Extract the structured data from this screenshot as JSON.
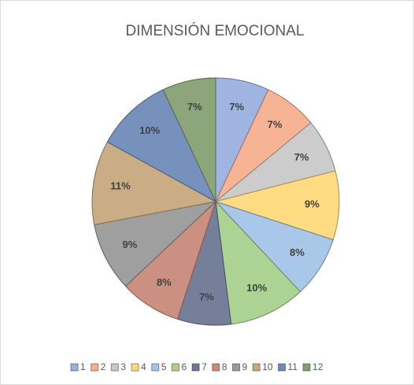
{
  "chart_data": {
    "type": "pie",
    "title": "DIMENSIÓN  EMOCIONAL",
    "categories": [
      "1",
      "2",
      "3",
      "4",
      "5",
      "6",
      "7",
      "8",
      "9",
      "10",
      "11",
      "12"
    ],
    "values": [
      7,
      7,
      7,
      9,
      8,
      10,
      7,
      8,
      9,
      11,
      10,
      7
    ],
    "value_labels": [
      "7%",
      "7%",
      "7%",
      "9%",
      "8%",
      "10%",
      "7%",
      "8%",
      "9%",
      "11%",
      "10%",
      "7%"
    ],
    "colors": [
      "#9bb0e0",
      "#f5b08f",
      "#c9c9c9",
      "#ffd97a",
      "#a3c4e8",
      "#a9d18e",
      "#6f7894",
      "#c98a7c",
      "#9a9a9a",
      "#c7a97e",
      "#6f8cb8",
      "#86a074"
    ],
    "legend": "bottom"
  }
}
